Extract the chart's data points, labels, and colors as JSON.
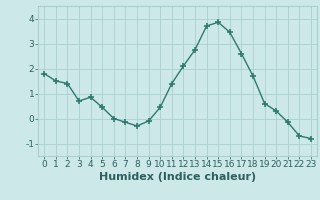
{
  "x": [
    0,
    1,
    2,
    3,
    4,
    5,
    6,
    7,
    8,
    9,
    10,
    11,
    12,
    13,
    14,
    15,
    16,
    17,
    18,
    19,
    20,
    21,
    22,
    23
  ],
  "y": [
    1.8,
    1.5,
    1.4,
    0.7,
    0.85,
    0.45,
    0.0,
    -0.15,
    -0.3,
    -0.1,
    0.45,
    1.4,
    2.1,
    2.75,
    3.7,
    3.85,
    3.45,
    2.6,
    1.7,
    0.6,
    0.3,
    -0.15,
    -0.7,
    -0.8
  ],
  "line_color": "#2e7a6e",
  "marker": "+",
  "marker_size": 5,
  "line_width": 1.0,
  "bg_color": "#cce8e8",
  "grid_color": "#aacfcf",
  "xlabel": "Humidex (Indice chaleur)",
  "xlim": [
    -0.5,
    23.5
  ],
  "ylim": [
    -1.5,
    4.5
  ],
  "yticks": [
    -1,
    0,
    1,
    2,
    3,
    4
  ],
  "xticks": [
    0,
    1,
    2,
    3,
    4,
    5,
    6,
    7,
    8,
    9,
    10,
    11,
    12,
    13,
    14,
    15,
    16,
    17,
    18,
    19,
    20,
    21,
    22,
    23
  ],
  "tick_label_fontsize": 6.5,
  "xlabel_fontsize": 8,
  "tick_color": "#2e6060"
}
